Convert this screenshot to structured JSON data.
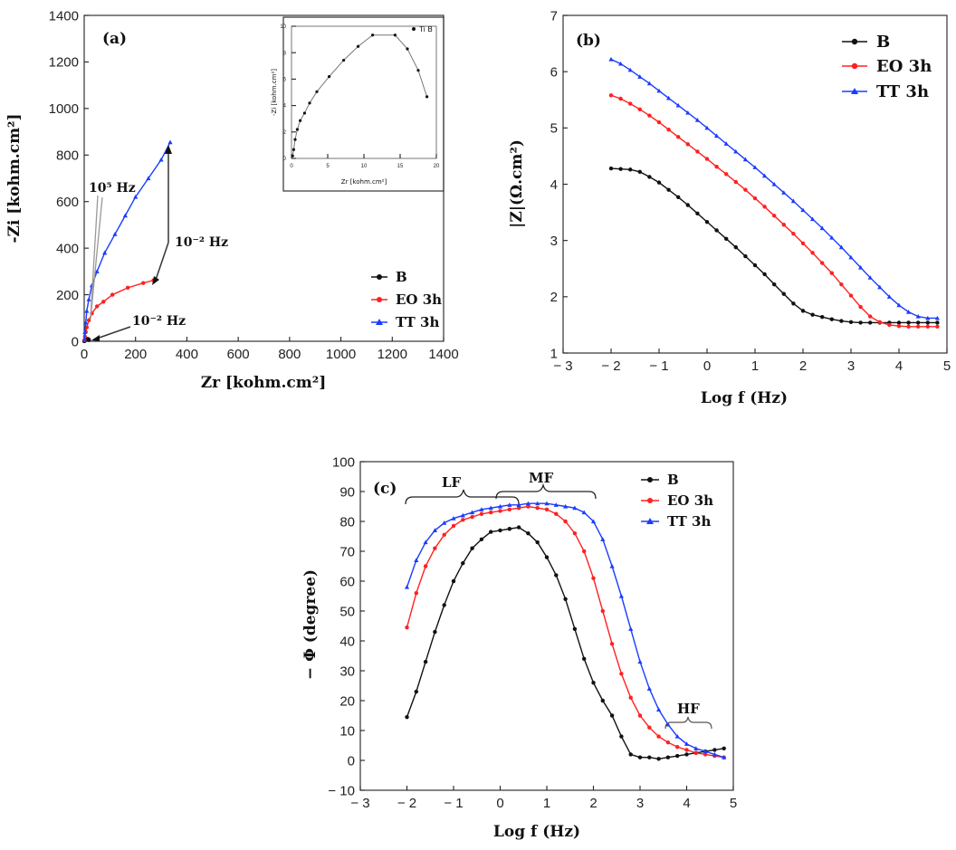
{
  "colors": {
    "B": "#111111",
    "EO": "#ff2020",
    "TT": "#1a3cff"
  },
  "chart_data": [
    {
      "id": "a",
      "type": "scatter",
      "panel_label": "(a)",
      "xlabel": "Zr [kohm.cm²]",
      "ylabel": "-Zi [kohm.cm²]",
      "xlim": [
        0,
        1400
      ],
      "ylim": [
        0,
        1400
      ],
      "xticks": [
        "0",
        "200",
        "400",
        "600",
        "800",
        "1000",
        "1200",
        "1400"
      ],
      "yticks": [
        "0",
        "200",
        "400",
        "600",
        "800",
        "1000",
        "1200",
        "1400"
      ],
      "series": [
        {
          "name": "B",
          "x": [
            0.3,
            1,
            2,
            3,
            5,
            8,
            10,
            12,
            14,
            16,
            17.5,
            18.5
          ],
          "y": [
            0.2,
            1,
            2,
            3.5,
            5,
            6.5,
            8,
            9.5,
            9.8,
            9,
            7,
            5
          ]
        },
        {
          "name": "EO 3h",
          "x": [
            1,
            3,
            6,
            10,
            18,
            30,
            50,
            75,
            110,
            170,
            230,
            270
          ],
          "y": [
            5,
            20,
            40,
            60,
            90,
            120,
            150,
            170,
            200,
            230,
            250,
            262
          ]
        },
        {
          "name": "TT 3h",
          "x": [
            1,
            3,
            6,
            10,
            18,
            30,
            50,
            80,
            120,
            160,
            200,
            250,
            300,
            335
          ],
          "y": [
            10,
            40,
            80,
            130,
            180,
            240,
            300,
            380,
            460,
            540,
            620,
            700,
            780,
            855
          ]
        }
      ],
      "annotations": [
        {
          "text": "10⁵ Hz"
        },
        {
          "text": "10⁻² Hz"
        },
        {
          "text": "10⁻² Hz"
        }
      ],
      "inset": {
        "xlabel": "Zr [kohm.cm²]",
        "ylabel": "-Zi [kohm.cm²]",
        "legend": "Ti B",
        "xlim": [
          0,
          20
        ],
        "ylim": [
          0,
          10.5
        ],
        "xticks": [
          "0",
          "5",
          "10",
          "15",
          "20"
        ],
        "yticks": [
          "0",
          "2",
          "4",
          "6",
          "8",
          "10"
        ],
        "series": [
          {
            "name": "Ti B",
            "x": [
              0.15,
              0.3,
              0.5,
              0.8,
              1.2,
              1.8,
              2.5,
              3.5,
              5.2,
              7.2,
              9.2,
              11.2,
              14.3,
              16,
              17.5,
              18.7
            ],
            "y": [
              0.2,
              0.7,
              1.5,
              2.3,
              3.0,
              3.6,
              4.4,
              5.3,
              6.5,
              7.8,
              8.9,
              9.8,
              9.8,
              8.7,
              7.0,
              4.9
            ]
          }
        ]
      }
    },
    {
      "id": "b",
      "type": "line",
      "panel_label": "(b)",
      "xlabel": "Log f (Hz)",
      "ylabel": "|Z|(Ω.cm²)",
      "xlim": [
        -3,
        5
      ],
      "ylim": [
        1,
        7
      ],
      "xticks": [
        "− 3",
        "− 2",
        "− 1",
        "0",
        "1",
        "2",
        "3",
        "4",
        "5"
      ],
      "yticks": [
        "1",
        "2",
        "3",
        "4",
        "5",
        "6",
        "7"
      ],
      "series": [
        {
          "name": "B",
          "x": [
            -2,
            -1.8,
            -1.6,
            -1.4,
            -1.2,
            -1,
            -0.8,
            -0.6,
            -0.4,
            -0.2,
            0,
            0.2,
            0.4,
            0.6,
            0.8,
            1,
            1.2,
            1.4,
            1.6,
            1.8,
            2,
            2.2,
            2.4,
            2.6,
            2.8,
            3,
            3.2,
            3.4,
            3.6,
            3.8,
            4,
            4.2,
            4.4,
            4.6,
            4.8
          ],
          "values": [
            4.28,
            4.27,
            4.26,
            4.22,
            4.13,
            4.03,
            3.9,
            3.77,
            3.63,
            3.48,
            3.33,
            3.18,
            3.03,
            2.88,
            2.72,
            2.56,
            2.4,
            2.22,
            2.05,
            1.88,
            1.75,
            1.68,
            1.64,
            1.6,
            1.57,
            1.55,
            1.54,
            1.54,
            1.54,
            1.54,
            1.54,
            1.54,
            1.54,
            1.54,
            1.54
          ]
        },
        {
          "name": "EO 3h",
          "x": [
            -2,
            -1.8,
            -1.6,
            -1.4,
            -1.2,
            -1,
            -0.8,
            -0.6,
            -0.4,
            -0.2,
            0,
            0.2,
            0.4,
            0.6,
            0.8,
            1,
            1.2,
            1.4,
            1.6,
            1.8,
            2,
            2.2,
            2.4,
            2.6,
            2.8,
            3,
            3.2,
            3.4,
            3.6,
            3.8,
            4,
            4.2,
            4.4,
            4.6,
            4.8
          ],
          "values": [
            5.58,
            5.52,
            5.43,
            5.33,
            5.22,
            5.1,
            4.97,
            4.84,
            4.71,
            4.58,
            4.45,
            4.31,
            4.18,
            4.04,
            3.9,
            3.75,
            3.6,
            3.44,
            3.28,
            3.12,
            2.95,
            2.78,
            2.6,
            2.42,
            2.22,
            2.02,
            1.82,
            1.65,
            1.55,
            1.5,
            1.48,
            1.47,
            1.47,
            1.47,
            1.47
          ]
        },
        {
          "name": "TT 3h",
          "x": [
            -2,
            -1.8,
            -1.6,
            -1.4,
            -1.2,
            -1,
            -0.8,
            -0.6,
            -0.4,
            -0.2,
            0,
            0.2,
            0.4,
            0.6,
            0.8,
            1,
            1.2,
            1.4,
            1.6,
            1.8,
            2,
            2.2,
            2.4,
            2.6,
            2.8,
            3,
            3.2,
            3.4,
            3.6,
            3.8,
            4,
            4.2,
            4.4,
            4.6,
            4.8
          ],
          "values": [
            6.22,
            6.14,
            6.03,
            5.91,
            5.79,
            5.66,
            5.53,
            5.4,
            5.27,
            5.14,
            5.0,
            4.86,
            4.72,
            4.58,
            4.44,
            4.3,
            4.15,
            4.0,
            3.85,
            3.7,
            3.54,
            3.38,
            3.22,
            3.05,
            2.88,
            2.7,
            2.52,
            2.34,
            2.17,
            2.0,
            1.85,
            1.73,
            1.65,
            1.62,
            1.62
          ]
        }
      ]
    },
    {
      "id": "c",
      "type": "line",
      "panel_label": "(c)",
      "xlabel": "Log f (Hz)",
      "ylabel": "− Φ (degree)",
      "xlim": [
        -3,
        5
      ],
      "ylim": [
        -10,
        100
      ],
      "xticks": [
        "− 3",
        "− 2",
        "− 1",
        "0",
        "1",
        "2",
        "3",
        "4",
        "5"
      ],
      "yticks": [
        "− 10",
        "0",
        "10",
        "20",
        "30",
        "40",
        "50",
        "60",
        "70",
        "80",
        "90",
        "100"
      ],
      "series": [
        {
          "name": "B",
          "x": [
            -2,
            -1.8,
            -1.6,
            -1.4,
            -1.2,
            -1,
            -0.8,
            -0.6,
            -0.4,
            -0.2,
            0,
            0.2,
            0.4,
            0.6,
            0.8,
            1,
            1.2,
            1.4,
            1.6,
            1.8,
            2,
            2.2,
            2.4,
            2.6,
            2.8,
            3,
            3.2,
            3.4,
            3.6,
            3.8,
            4,
            4.2,
            4.4,
            4.6,
            4.8
          ],
          "values": [
            14.5,
            23,
            33,
            43,
            52,
            60,
            66,
            71,
            74,
            76.5,
            77,
            77.5,
            78,
            76,
            73,
            68,
            62,
            54,
            44,
            34,
            26,
            20,
            15,
            8,
            2,
            1,
            1,
            0.5,
            1,
            1.5,
            2,
            2.5,
            3,
            3.5,
            4
          ]
        },
        {
          "name": "EO 3h",
          "x": [
            -2,
            -1.8,
            -1.6,
            -1.4,
            -1.2,
            -1,
            -0.8,
            -0.6,
            -0.4,
            -0.2,
            0,
            0.2,
            0.4,
            0.6,
            0.8,
            1,
            1.2,
            1.4,
            1.6,
            1.8,
            2,
            2.2,
            2.4,
            2.6,
            2.8,
            3,
            3.2,
            3.4,
            3.6,
            3.8,
            4,
            4.2,
            4.4,
            4.6,
            4.8
          ],
          "values": [
            44.5,
            56,
            65,
            71,
            75.5,
            78.5,
            80.5,
            81.5,
            82.5,
            83,
            83.5,
            84,
            84.5,
            85,
            84.5,
            84,
            82.5,
            80,
            76,
            70,
            61,
            50,
            39,
            29,
            21,
            15,
            11,
            8,
            6,
            4.5,
            3.5,
            2.5,
            2,
            1.5,
            1
          ]
        },
        {
          "name": "TT 3h",
          "x": [
            -2,
            -1.8,
            -1.6,
            -1.4,
            -1.2,
            -1,
            -0.8,
            -0.6,
            -0.4,
            -0.2,
            0,
            0.2,
            0.4,
            0.6,
            0.8,
            1,
            1.2,
            1.4,
            1.6,
            1.8,
            2,
            2.2,
            2.4,
            2.6,
            2.8,
            3,
            3.2,
            3.4,
            3.6,
            3.8,
            4,
            4.2,
            4.4,
            4.6,
            4.8
          ],
          "values": [
            58,
            67,
            73,
            77,
            79.5,
            81,
            82,
            83,
            84,
            84.5,
            85,
            85.5,
            85.5,
            86,
            86,
            86,
            85.5,
            85,
            84.5,
            83,
            80,
            74,
            65,
            55,
            44,
            33,
            24,
            17,
            12,
            8,
            5.5,
            4,
            3,
            2,
            1
          ]
        }
      ],
      "brackets": [
        {
          "label": "LF"
        },
        {
          "label": "MF"
        },
        {
          "label": "HF"
        }
      ]
    }
  ]
}
